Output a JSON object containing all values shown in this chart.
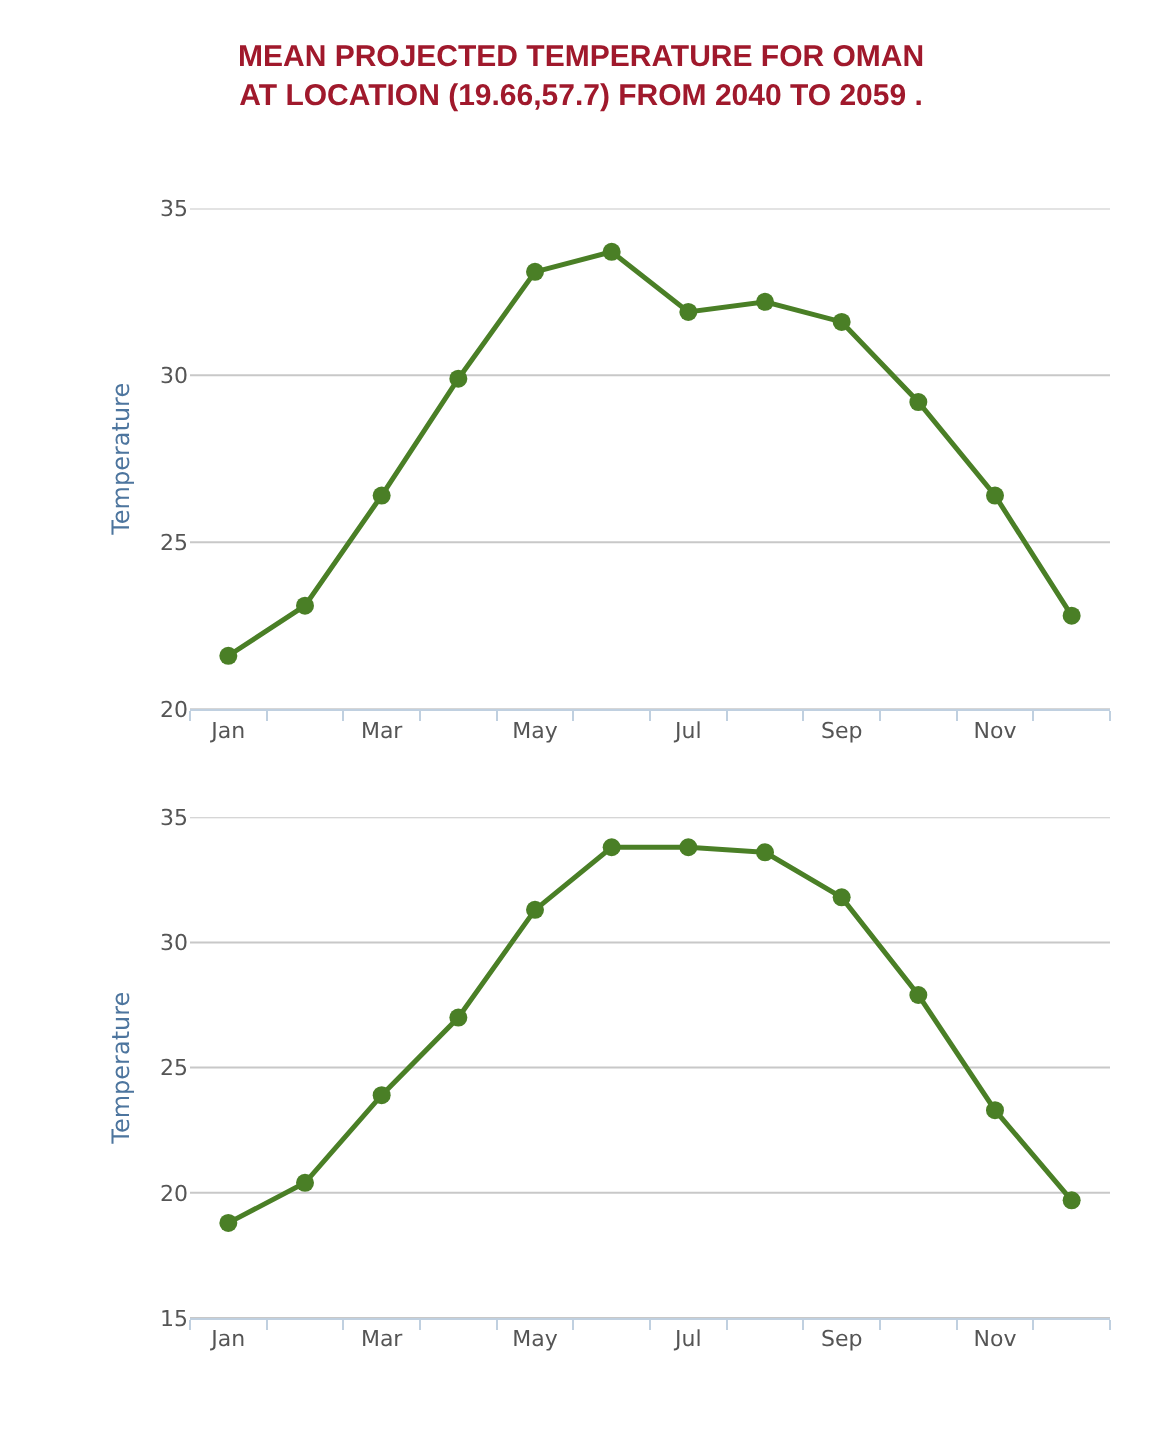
{
  "chart_data": [
    {
      "type": "line",
      "title": "MEAN PROJECTED TEMPERATURE FOR OMAN\nAT LOCATION (19.66,57.7) FROM 2040 TO 2059 .",
      "ylabel": "Temperature",
      "categories": [
        "Jan",
        null,
        "Mar",
        null,
        "May",
        null,
        "Jul",
        null,
        "Sep",
        null,
        "Nov",
        null
      ],
      "series": [
        {
          "color": "#4a7f26",
          "values": [
            21.6,
            23.1,
            26.4,
            29.9,
            33.1,
            33.7,
            31.9,
            32.2,
            31.6,
            29.2,
            26.4,
            22.8
          ]
        }
      ],
      "ylim": [
        20,
        35
      ],
      "yticks": [
        20,
        25,
        30,
        35
      ],
      "grid": "y",
      "marker": "circle",
      "line_style": "solid"
    },
    {
      "type": "line",
      "ylabel": "Temperature",
      "categories": [
        "Jan",
        null,
        "Mar",
        null,
        "May",
        null,
        "Jul",
        null,
        "Sep",
        null,
        "Nov",
        null
      ],
      "series": [
        {
          "color": "#4a7f26",
          "values": [
            18.8,
            20.4,
            23.9,
            27.0,
            31.3,
            33.8,
            33.8,
            33.6,
            31.8,
            27.9,
            23.3,
            19.7
          ]
        }
      ],
      "ylim": [
        15,
        35
      ],
      "yticks": [
        15,
        20,
        25,
        30,
        35
      ],
      "grid": "y",
      "marker": "circle",
      "line_style": "solid"
    }
  ]
}
